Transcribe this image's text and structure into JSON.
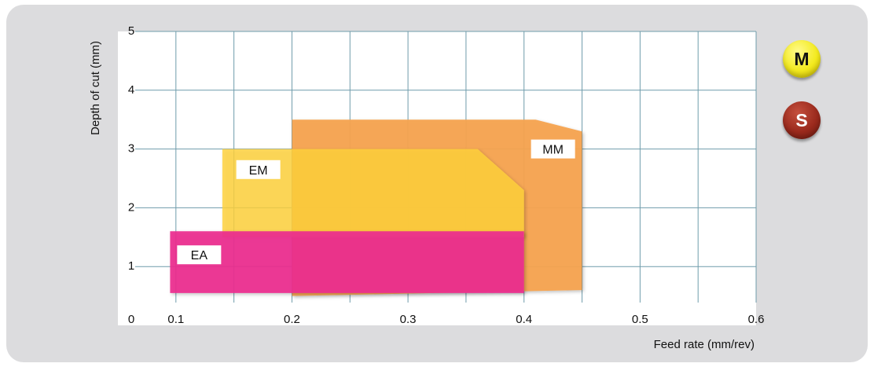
{
  "chart_data": {
    "type": "area",
    "xlabel": "Feed rate (mm/rev)",
    "ylabel": "Depth of cut (mm)",
    "xlim": [
      0.05,
      0.6
    ],
    "ylim": [
      0,
      5
    ],
    "x_ticks": [
      {
        "value": 0.1,
        "label": "0.1"
      },
      {
        "value": 0.2,
        "label": "0.2"
      },
      {
        "value": 0.3,
        "label": "0.3"
      },
      {
        "value": 0.4,
        "label": "0.4"
      },
      {
        "value": 0.5,
        "label": "0.5"
      },
      {
        "value": 0.6,
        "label": "0.6"
      }
    ],
    "origin_label": "0",
    "y_ticks": [
      {
        "value": 1,
        "label": "1"
      },
      {
        "value": 2,
        "label": "2"
      },
      {
        "value": 3,
        "label": "3"
      },
      {
        "value": 4,
        "label": "4"
      },
      {
        "value": 5,
        "label": "5"
      }
    ],
    "grid": true,
    "series": [
      {
        "name": "MM",
        "color": "#f5a34f",
        "opacity": 0.95,
        "polygon": [
          [
            0.2,
            0.5
          ],
          [
            0.2,
            3.5
          ],
          [
            0.41,
            3.5
          ],
          [
            0.45,
            3.3
          ],
          [
            0.45,
            0.6
          ]
        ],
        "label_at": [
          0.425,
          3.0
        ]
      },
      {
        "name": "EM",
        "color": "#ffd23c",
        "opacity": 0.82,
        "polygon": [
          [
            0.14,
            1.5
          ],
          [
            0.14,
            3.0
          ],
          [
            0.36,
            3.0
          ],
          [
            0.4,
            2.3
          ],
          [
            0.4,
            1.5
          ]
        ],
        "label_at": [
          0.171,
          2.65
        ]
      },
      {
        "name": "EA",
        "color": "#ec2a8e",
        "opacity": 0.92,
        "polygon": [
          [
            0.095,
            0.55
          ],
          [
            0.095,
            1.6
          ],
          [
            0.4,
            1.6
          ],
          [
            0.4,
            0.55
          ]
        ],
        "label_at": [
          0.12,
          1.2
        ]
      }
    ],
    "legend_badges": [
      {
        "label": "M",
        "color": "#f3ea1f",
        "text_color": "#111111"
      },
      {
        "label": "S",
        "color": "#9b2a1d",
        "text_color": "#ffffff"
      }
    ]
  }
}
